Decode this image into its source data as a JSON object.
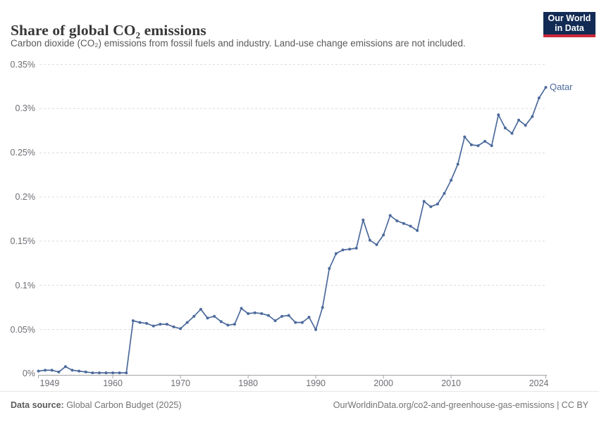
{
  "header": {
    "title": "Share of global CO₂ emissions",
    "subtitle": "Carbon dioxide (CO₂) emissions from fossil fuels and industry. Land-use change emissions are not included."
  },
  "logo": {
    "line1": "Our World",
    "line2": "in Data"
  },
  "colors": {
    "line": "#4C6A9C",
    "logo_bg": "#122B54",
    "logo_bar": "#CE2739",
    "gridline": "#dcdcdc",
    "axis": "#a3a3a3"
  },
  "chart_data": {
    "type": "line",
    "title": "Share of global CO₂ emissions",
    "unit": "%",
    "x_range": [
      1949,
      2024
    ],
    "ylim": [
      0,
      0.35
    ],
    "grid": true,
    "legend_position": "end-of-line",
    "y_ticks": [
      {
        "value": 0,
        "label": "0%"
      },
      {
        "value": 0.05,
        "label": "0.05%"
      },
      {
        "value": 0.1,
        "label": "0.1%"
      },
      {
        "value": 0.15,
        "label": "0.15%"
      },
      {
        "value": 0.2,
        "label": "0.2%"
      },
      {
        "value": 0.25,
        "label": "0.25%"
      },
      {
        "value": 0.3,
        "label": "0.3%"
      },
      {
        "value": 0.35,
        "label": "0.35%"
      }
    ],
    "x_ticks": [
      {
        "value": 1949,
        "label": "1949",
        "align": "left"
      },
      {
        "value": 1960,
        "label": "1960",
        "align": "center"
      },
      {
        "value": 1970,
        "label": "1970",
        "align": "center"
      },
      {
        "value": 1980,
        "label": "1980",
        "align": "center"
      },
      {
        "value": 1990,
        "label": "1990",
        "align": "center"
      },
      {
        "value": 2000,
        "label": "2000",
        "align": "center"
      },
      {
        "value": 2010,
        "label": "2010",
        "align": "center"
      },
      {
        "value": 2024,
        "label": "2024",
        "align": "right"
      }
    ],
    "series": [
      {
        "name": "Qatar",
        "points": [
          [
            1949,
            0.003
          ],
          [
            1950,
            0.004
          ],
          [
            1951,
            0.004
          ],
          [
            1952,
            0.002
          ],
          [
            1953,
            0.008
          ],
          [
            1954,
            0.004
          ],
          [
            1955,
            0.003
          ],
          [
            1956,
            0.002
          ],
          [
            1957,
            0.001
          ],
          [
            1958,
            0.001
          ],
          [
            1959,
            0.001
          ],
          [
            1960,
            0.001
          ],
          [
            1961,
            0.001
          ],
          [
            1962,
            0.001
          ],
          [
            1963,
            0.06
          ],
          [
            1964,
            0.058
          ],
          [
            1965,
            0.057
          ],
          [
            1966,
            0.054
          ],
          [
            1967,
            0.056
          ],
          [
            1968,
            0.056
          ],
          [
            1969,
            0.053
          ],
          [
            1970,
            0.051
          ],
          [
            1971,
            0.058
          ],
          [
            1972,
            0.065
          ],
          [
            1973,
            0.073
          ],
          [
            1974,
            0.063
          ],
          [
            1975,
            0.065
          ],
          [
            1976,
            0.059
          ],
          [
            1977,
            0.055
          ],
          [
            1978,
            0.056
          ],
          [
            1979,
            0.074
          ],
          [
            1980,
            0.068
          ],
          [
            1981,
            0.069
          ],
          [
            1982,
            0.068
          ],
          [
            1983,
            0.066
          ],
          [
            1984,
            0.06
          ],
          [
            1985,
            0.065
          ],
          [
            1986,
            0.066
          ],
          [
            1987,
            0.058
          ],
          [
            1988,
            0.058
          ],
          [
            1989,
            0.064
          ],
          [
            1990,
            0.05
          ],
          [
            1991,
            0.075
          ],
          [
            1992,
            0.119
          ],
          [
            1993,
            0.136
          ],
          [
            1994,
            0.14
          ],
          [
            1995,
            0.141
          ],
          [
            1996,
            0.142
          ],
          [
            1997,
            0.174
          ],
          [
            1998,
            0.151
          ],
          [
            1999,
            0.146
          ],
          [
            2000,
            0.157
          ],
          [
            2001,
            0.179
          ],
          [
            2002,
            0.173
          ],
          [
            2003,
            0.17
          ],
          [
            2004,
            0.167
          ],
          [
            2005,
            0.162
          ],
          [
            2006,
            0.195
          ],
          [
            2007,
            0.189
          ],
          [
            2008,
            0.192
          ],
          [
            2009,
            0.204
          ],
          [
            2010,
            0.219
          ],
          [
            2011,
            0.237
          ],
          [
            2012,
            0.268
          ],
          [
            2013,
            0.259
          ],
          [
            2014,
            0.258
          ],
          [
            2015,
            0.263
          ],
          [
            2016,
            0.258
          ],
          [
            2017,
            0.293
          ],
          [
            2018,
            0.278
          ],
          [
            2019,
            0.272
          ],
          [
            2020,
            0.287
          ],
          [
            2021,
            0.281
          ],
          [
            2022,
            0.291
          ],
          [
            2023,
            0.312
          ],
          [
            2024,
            0.324
          ]
        ]
      }
    ]
  },
  "footer": {
    "source_label": "Data source:",
    "source_value": " Global Carbon Budget (2025)",
    "credit": "OurWorldinData.org/co2-and-greenhouse-gas-emissions | CC BY"
  }
}
